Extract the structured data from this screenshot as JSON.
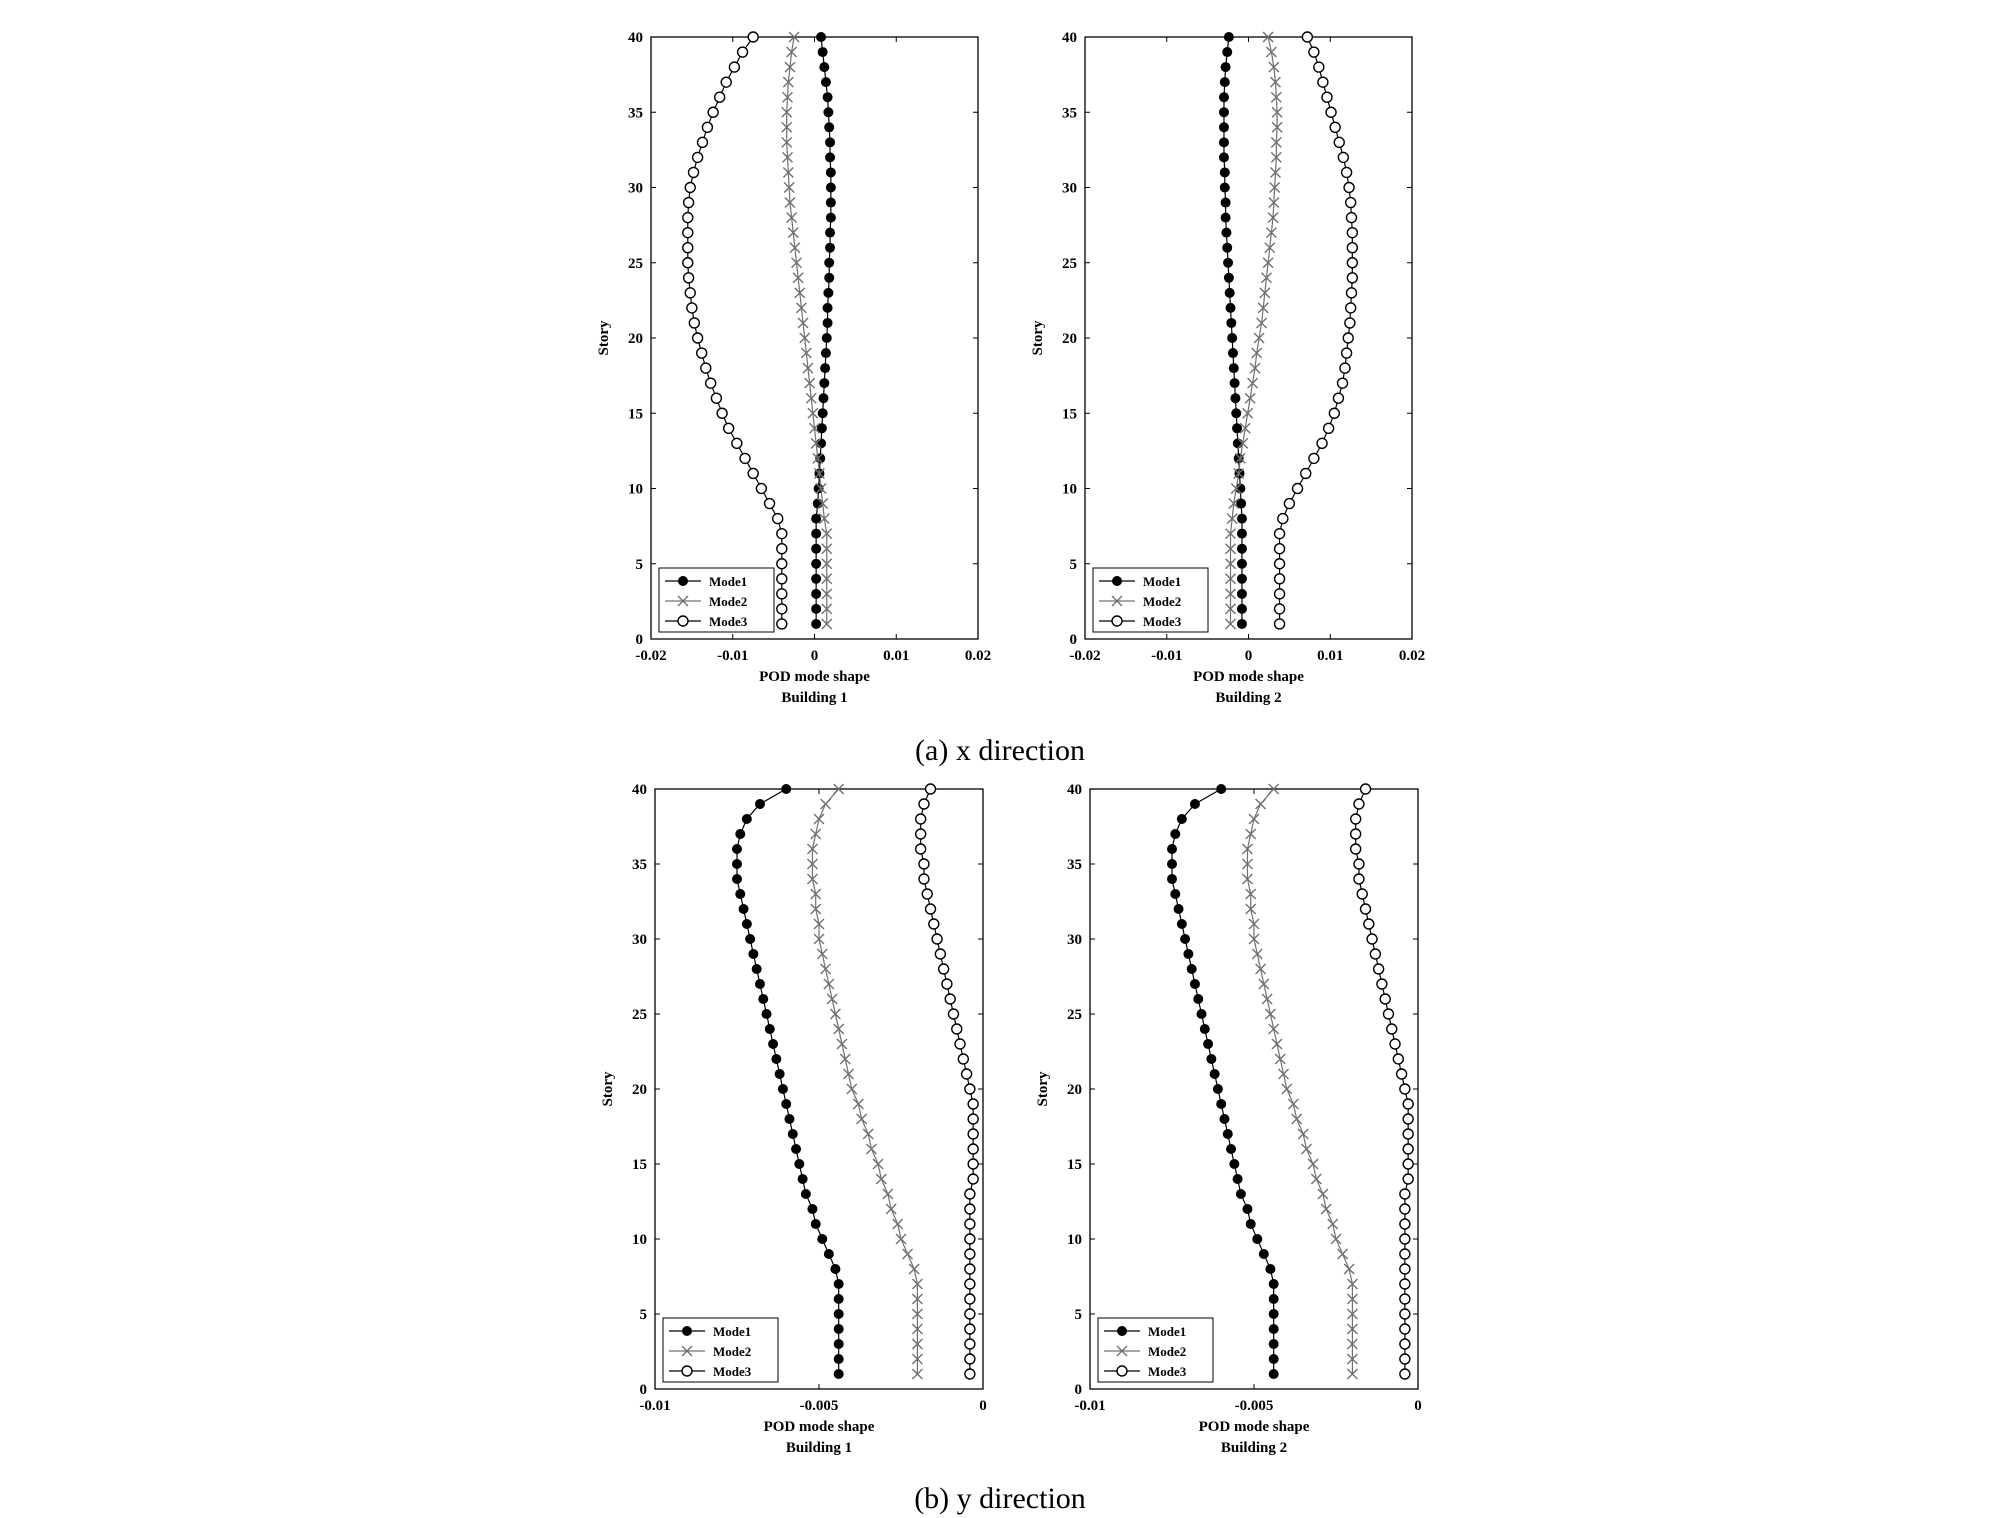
{
  "figure": {
    "caption_a": "(a) x direction",
    "caption_b": "(b) y direction"
  },
  "chart_data": [
    {
      "type": "line",
      "panel": "top-left",
      "xlabel": "POD mode shape",
      "subtitle": "Building 1",
      "ylabel": "Story",
      "xlim": [
        -0.02,
        0.02
      ],
      "ylim": [
        0,
        40
      ],
      "xticks": [
        "-0.02",
        "-0.01",
        "0",
        "0.01",
        "0.02"
      ],
      "yticks": [
        "0",
        "5",
        "10",
        "15",
        "20",
        "25",
        "30",
        "35",
        "40"
      ],
      "legend_position": "bottom-left",
      "x": [
        1,
        2,
        3,
        4,
        5,
        6,
        7,
        8,
        9,
        10,
        11,
        12,
        13,
        14,
        15,
        16,
        17,
        18,
        19,
        20,
        21,
        22,
        23,
        24,
        25,
        26,
        27,
        28,
        29,
        30,
        31,
        32,
        33,
        34,
        35,
        36,
        37,
        38,
        39,
        40
      ],
      "series": [
        {
          "name": "Mode1",
          "values": [
            0.0002,
            0.0002,
            0.0002,
            0.0002,
            0.0002,
            0.0002,
            0.0002,
            0.0002,
            0.0004,
            0.0005,
            0.0006,
            0.0007,
            0.0008,
            0.0009,
            0.001,
            0.0011,
            0.0012,
            0.0013,
            0.0014,
            0.0015,
            0.0016,
            0.0016,
            0.0017,
            0.0018,
            0.0018,
            0.0019,
            0.0019,
            0.002,
            0.002,
            0.002,
            0.002,
            0.0019,
            0.0019,
            0.0018,
            0.0017,
            0.0016,
            0.0014,
            0.0012,
            0.001,
            0.0008
          ]
        },
        {
          "name": "Mode2",
          "values": [
            0.0015,
            0.0015,
            0.0015,
            0.0015,
            0.0015,
            0.0015,
            0.0015,
            0.0012,
            0.001,
            0.0008,
            0.0006,
            0.0004,
            0.0002,
            0.0,
            -0.0002,
            -0.0004,
            -0.0006,
            -0.0008,
            -0.001,
            -0.0012,
            -0.0014,
            -0.0016,
            -0.0018,
            -0.002,
            -0.0022,
            -0.0024,
            -0.0026,
            -0.0028,
            -0.003,
            -0.0031,
            -0.0032,
            -0.0033,
            -0.0034,
            -0.0034,
            -0.0034,
            -0.0033,
            -0.0032,
            -0.003,
            -0.0028,
            -0.0025
          ]
        },
        {
          "name": "Mode3",
          "values": [
            -0.004,
            -0.004,
            -0.004,
            -0.004,
            -0.004,
            -0.004,
            -0.004,
            -0.0045,
            -0.0055,
            -0.0065,
            -0.0075,
            -0.0085,
            -0.0095,
            -0.0105,
            -0.0113,
            -0.012,
            -0.0127,
            -0.0133,
            -0.0138,
            -0.0143,
            -0.0147,
            -0.015,
            -0.0152,
            -0.0154,
            -0.0155,
            -0.0155,
            -0.0155,
            -0.0155,
            -0.0154,
            -0.0152,
            -0.0148,
            -0.0143,
            -0.0137,
            -0.0131,
            -0.0124,
            -0.0116,
            -0.0108,
            -0.0098,
            -0.0088,
            -0.0075
          ]
        }
      ]
    },
    {
      "type": "line",
      "panel": "top-right",
      "xlabel": "POD mode shape",
      "subtitle": "Building 2",
      "ylabel": "Story",
      "xlim": [
        -0.02,
        0.02
      ],
      "ylim": [
        0,
        40
      ],
      "xticks": [
        "-0.02",
        "-0.01",
        "0",
        "0.01",
        "0.02"
      ],
      "yticks": [
        "0",
        "5",
        "10",
        "15",
        "20",
        "25",
        "30",
        "35",
        "40"
      ],
      "legend_position": "bottom-left",
      "x": [
        1,
        2,
        3,
        4,
        5,
        6,
        7,
        8,
        9,
        10,
        11,
        12,
        13,
        14,
        15,
        16,
        17,
        18,
        19,
        20,
        21,
        22,
        23,
        24,
        25,
        26,
        27,
        28,
        29,
        30,
        31,
        32,
        33,
        34,
        35,
        36,
        37,
        38,
        39,
        40
      ],
      "series": [
        {
          "name": "Mode1",
          "values": [
            -0.0008,
            -0.0008,
            -0.0008,
            -0.0008,
            -0.0008,
            -0.0008,
            -0.0008,
            -0.0008,
            -0.0009,
            -0.001,
            -0.0011,
            -0.0012,
            -0.0013,
            -0.0014,
            -0.0015,
            -0.0016,
            -0.0017,
            -0.0018,
            -0.0019,
            -0.002,
            -0.0021,
            -0.0022,
            -0.0023,
            -0.0024,
            -0.0025,
            -0.0026,
            -0.0027,
            -0.0028,
            -0.0028,
            -0.0029,
            -0.0029,
            -0.003,
            -0.003,
            -0.003,
            -0.003,
            -0.003,
            -0.0029,
            -0.0028,
            -0.0026,
            -0.0024
          ]
        },
        {
          "name": "Mode2",
          "values": [
            -0.0022,
            -0.0022,
            -0.0022,
            -0.0022,
            -0.0022,
            -0.0022,
            -0.0022,
            -0.002,
            -0.0018,
            -0.0015,
            -0.0012,
            -0.001,
            -0.0007,
            -0.0004,
            -0.0001,
            0.0002,
            0.0005,
            0.0008,
            0.001,
            0.0013,
            0.0016,
            0.0018,
            0.002,
            0.0022,
            0.0024,
            0.0026,
            0.0028,
            0.003,
            0.0031,
            0.0032,
            0.0033,
            0.0034,
            0.0034,
            0.0035,
            0.0035,
            0.0034,
            0.0033,
            0.0031,
            0.0028,
            0.0024
          ]
        },
        {
          "name": "Mode3",
          "values": [
            0.0038,
            0.0038,
            0.0038,
            0.0038,
            0.0038,
            0.0038,
            0.0038,
            0.0042,
            0.005,
            0.006,
            0.007,
            0.008,
            0.009,
            0.0098,
            0.0105,
            0.011,
            0.0115,
            0.0118,
            0.012,
            0.0122,
            0.0124,
            0.0125,
            0.0126,
            0.0127,
            0.0127,
            0.0127,
            0.0127,
            0.0126,
            0.0125,
            0.0123,
            0.012,
            0.0116,
            0.0111,
            0.0106,
            0.0101,
            0.0096,
            0.0091,
            0.0086,
            0.008,
            0.0072
          ]
        }
      ]
    },
    {
      "type": "line",
      "panel": "bottom-left",
      "xlabel": "POD mode shape",
      "subtitle": "Building 1",
      "ylabel": "Story",
      "xlim": [
        -0.01,
        0
      ],
      "ylim": [
        0,
        40
      ],
      "xticks": [
        "-0.01",
        "-0.005",
        "0"
      ],
      "yticks": [
        "0",
        "5",
        "10",
        "15",
        "20",
        "25",
        "30",
        "35",
        "40"
      ],
      "legend_position": "bottom-left",
      "x": [
        1,
        2,
        3,
        4,
        5,
        6,
        7,
        8,
        9,
        10,
        11,
        12,
        13,
        14,
        15,
        16,
        17,
        18,
        19,
        20,
        21,
        22,
        23,
        24,
        25,
        26,
        27,
        28,
        29,
        30,
        31,
        32,
        33,
        34,
        35,
        36,
        37,
        38,
        39,
        40
      ],
      "series": [
        {
          "name": "Mode1",
          "values": [
            -0.0044,
            -0.0044,
            -0.0044,
            -0.0044,
            -0.0044,
            -0.0044,
            -0.0044,
            -0.0045,
            -0.0047,
            -0.0049,
            -0.0051,
            -0.0052,
            -0.0054,
            -0.0055,
            -0.0056,
            -0.0057,
            -0.0058,
            -0.0059,
            -0.006,
            -0.0061,
            -0.0062,
            -0.0063,
            -0.0064,
            -0.0065,
            -0.0066,
            -0.0067,
            -0.0068,
            -0.0069,
            -0.007,
            -0.0071,
            -0.0072,
            -0.0073,
            -0.0074,
            -0.0075,
            -0.0075,
            -0.0075,
            -0.0074,
            -0.0072,
            -0.0068,
            -0.006
          ]
        },
        {
          "name": "Mode2",
          "values": [
            -0.002,
            -0.002,
            -0.002,
            -0.002,
            -0.002,
            -0.002,
            -0.002,
            -0.0021,
            -0.0023,
            -0.0025,
            -0.0026,
            -0.0028,
            -0.0029,
            -0.0031,
            -0.0032,
            -0.0034,
            -0.0035,
            -0.0037,
            -0.0038,
            -0.004,
            -0.0041,
            -0.0042,
            -0.0043,
            -0.0044,
            -0.0045,
            -0.0046,
            -0.0047,
            -0.0048,
            -0.0049,
            -0.005,
            -0.005,
            -0.0051,
            -0.0051,
            -0.0052,
            -0.0052,
            -0.0052,
            -0.0051,
            -0.005,
            -0.0048,
            -0.0044
          ]
        },
        {
          "name": "Mode3",
          "values": [
            -0.0004,
            -0.0004,
            -0.0004,
            -0.0004,
            -0.0004,
            -0.0004,
            -0.0004,
            -0.0004,
            -0.0004,
            -0.0004,
            -0.0004,
            -0.0004,
            -0.0004,
            -0.0003,
            -0.0003,
            -0.0003,
            -0.0003,
            -0.0003,
            -0.0003,
            -0.0004,
            -0.0005,
            -0.0006,
            -0.0007,
            -0.0008,
            -0.0009,
            -0.001,
            -0.0011,
            -0.0012,
            -0.0013,
            -0.0014,
            -0.0015,
            -0.0016,
            -0.0017,
            -0.0018,
            -0.0018,
            -0.0019,
            -0.0019,
            -0.0019,
            -0.0018,
            -0.0016
          ]
        }
      ]
    },
    {
      "type": "line",
      "panel": "bottom-right",
      "xlabel": "POD mode shape",
      "subtitle": "Building 2",
      "ylabel": "Story",
      "xlim": [
        -0.01,
        0
      ],
      "ylim": [
        0,
        40
      ],
      "xticks": [
        "-0.01",
        "-0.005",
        "0"
      ],
      "yticks": [
        "0",
        "5",
        "10",
        "15",
        "20",
        "25",
        "30",
        "35",
        "40"
      ],
      "legend_position": "bottom-left",
      "x": [
        1,
        2,
        3,
        4,
        5,
        6,
        7,
        8,
        9,
        10,
        11,
        12,
        13,
        14,
        15,
        16,
        17,
        18,
        19,
        20,
        21,
        22,
        23,
        24,
        25,
        26,
        27,
        28,
        29,
        30,
        31,
        32,
        33,
        34,
        35,
        36,
        37,
        38,
        39,
        40
      ],
      "series": [
        {
          "name": "Mode1",
          "values": [
            -0.0044,
            -0.0044,
            -0.0044,
            -0.0044,
            -0.0044,
            -0.0044,
            -0.0044,
            -0.0045,
            -0.0047,
            -0.0049,
            -0.0051,
            -0.0052,
            -0.0054,
            -0.0055,
            -0.0056,
            -0.0057,
            -0.0058,
            -0.0059,
            -0.006,
            -0.0061,
            -0.0062,
            -0.0063,
            -0.0064,
            -0.0065,
            -0.0066,
            -0.0067,
            -0.0068,
            -0.0069,
            -0.007,
            -0.0071,
            -0.0072,
            -0.0073,
            -0.0074,
            -0.0075,
            -0.0075,
            -0.0075,
            -0.0074,
            -0.0072,
            -0.0068,
            -0.006
          ]
        },
        {
          "name": "Mode2",
          "values": [
            -0.002,
            -0.002,
            -0.002,
            -0.002,
            -0.002,
            -0.002,
            -0.002,
            -0.0021,
            -0.0023,
            -0.0025,
            -0.0026,
            -0.0028,
            -0.0029,
            -0.0031,
            -0.0032,
            -0.0034,
            -0.0035,
            -0.0037,
            -0.0038,
            -0.004,
            -0.0041,
            -0.0042,
            -0.0043,
            -0.0044,
            -0.0045,
            -0.0046,
            -0.0047,
            -0.0048,
            -0.0049,
            -0.005,
            -0.005,
            -0.0051,
            -0.0051,
            -0.0052,
            -0.0052,
            -0.0052,
            -0.0051,
            -0.005,
            -0.0048,
            -0.0044
          ]
        },
        {
          "name": "Mode3",
          "values": [
            -0.0004,
            -0.0004,
            -0.0004,
            -0.0004,
            -0.0004,
            -0.0004,
            -0.0004,
            -0.0004,
            -0.0004,
            -0.0004,
            -0.0004,
            -0.0004,
            -0.0004,
            -0.0003,
            -0.0003,
            -0.0003,
            -0.0003,
            -0.0003,
            -0.0003,
            -0.0004,
            -0.0005,
            -0.0006,
            -0.0007,
            -0.0008,
            -0.0009,
            -0.001,
            -0.0011,
            -0.0012,
            -0.0013,
            -0.0014,
            -0.0015,
            -0.0016,
            -0.0017,
            -0.0018,
            -0.0018,
            -0.0019,
            -0.0019,
            -0.0019,
            -0.0018,
            -0.0016
          ]
        }
      ]
    }
  ]
}
